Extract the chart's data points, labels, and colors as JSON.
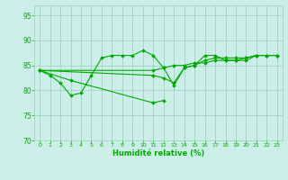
{
  "bg_color": "#cceee8",
  "grid_color": "#99ccbb",
  "line_color": "#00aa00",
  "marker_color": "#00aa00",
  "xlabel": "Humidité relative (%)",
  "xlabel_color": "#00aa00",
  "tick_color": "#00aa00",
  "ylim": [
    70,
    97
  ],
  "yticks": [
    70,
    75,
    80,
    85,
    90,
    95
  ],
  "xlim": [
    -0.5,
    23.5
  ],
  "xticks": [
    0,
    1,
    2,
    3,
    4,
    5,
    6,
    7,
    8,
    9,
    10,
    11,
    12,
    13,
    14,
    15,
    16,
    17,
    18,
    19,
    20,
    21,
    22,
    23
  ],
  "series1": [
    84,
    83,
    81.5,
    79,
    79.5,
    83,
    86.5,
    87,
    87,
    87,
    88,
    87,
    84.5,
    81,
    84.5,
    85,
    87,
    87,
    86,
    86,
    86,
    87,
    87,
    87
  ],
  "series2": [
    84,
    null,
    null,
    null,
    null,
    null,
    null,
    null,
    null,
    null,
    null,
    84,
    84.5,
    85,
    85,
    85.5,
    85.5,
    86,
    86,
    86,
    86.5,
    87,
    87,
    87
  ],
  "series3": [
    84,
    null,
    null,
    null,
    null,
    null,
    null,
    null,
    null,
    null,
    null,
    83,
    82.5,
    81.5,
    84.5,
    85,
    86,
    86.5,
    86.5,
    86.5,
    86.5,
    87,
    87,
    87
  ],
  "series4": [
    84,
    null,
    null,
    82,
    null,
    null,
    null,
    null,
    null,
    null,
    null,
    77.5,
    78,
    null,
    null,
    null,
    null,
    null,
    null,
    null,
    null,
    null,
    null,
    null
  ]
}
